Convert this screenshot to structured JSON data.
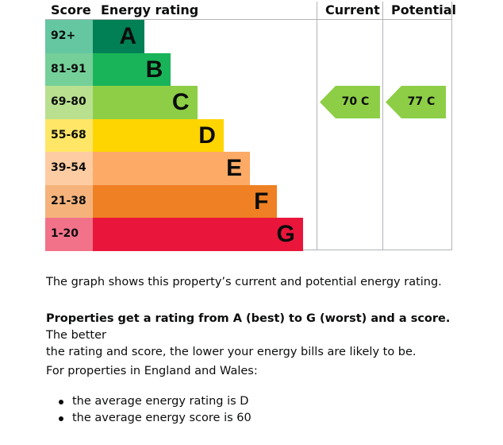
{
  "headers": {
    "score": "Score",
    "energy_rating": "Energy rating",
    "current": "Current",
    "potential": "Potential"
  },
  "bands": [
    {
      "score": "92+",
      "letter": "A",
      "color": "#008054",
      "score_bg": "#64c7a1"
    },
    {
      "score": "81-91",
      "letter": "B",
      "color": "#19b459",
      "score_bg": "#75cf99"
    },
    {
      "score": "69-80",
      "letter": "C",
      "color": "#8dce46",
      "score_bg": "#b9e08f"
    },
    {
      "score": "55-68",
      "letter": "D",
      "color": "#ffd500",
      "score_bg": "#ffe666"
    },
    {
      "score": "39-54",
      "letter": "E",
      "color": "#fcaa65",
      "score_bg": "#fdcca2"
    },
    {
      "score": "21-38",
      "letter": "F",
      "color": "#ef8023",
      "score_bg": "#f5b37b"
    },
    {
      "score": "1-20",
      "letter": "G",
      "color": "#e9153b",
      "score_bg": "#f27289"
    }
  ],
  "current": {
    "label": "70 C",
    "band": "C",
    "color": "#8dce46"
  },
  "potential": {
    "label": "77 C",
    "band": "C",
    "color": "#8dce46"
  },
  "text": {
    "intro": "The graph shows this property’s current and potential energy rating.",
    "bold": "Properties get a rating from A (best) to G (worst) and a score.",
    "rest_line1": " The better",
    "line2": "the rating and score, the lower your energy bills are likely to be.",
    "region": "For properties in England and Wales:",
    "bullets": [
      "the average energy rating is D",
      "the average energy score is 60"
    ]
  }
}
